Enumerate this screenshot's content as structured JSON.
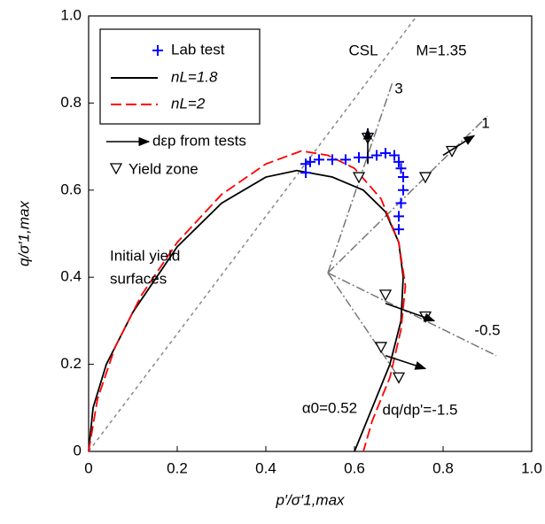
{
  "chart_data": {
    "type": "line",
    "xlabel": "p′/σ′1,max",
    "ylabel": "q/σ′1,max",
    "xlim": [
      0,
      1
    ],
    "ylim": [
      0,
      1
    ],
    "xticks": [
      0,
      0.2,
      0.4,
      0.6,
      0.8,
      {
        "value": 1,
        "label": "1.0"
      }
    ],
    "yticks": [
      0,
      0.2,
      0.4,
      0.6,
      0.8,
      {
        "value": 1,
        "label": "1.0"
      }
    ],
    "series": [
      {
        "name": "Lab test",
        "color": "#0000ff",
        "marker": "plus",
        "x": [
          0.49,
          0.49,
          0.5,
          0.52,
          0.55,
          0.58,
          0.61,
          0.63,
          0.65,
          0.67,
          0.69,
          0.7,
          0.705,
          0.71,
          0.71,
          0.705,
          0.7,
          0.7,
          0.63
        ],
        "values": [
          0.64,
          0.66,
          0.665,
          0.67,
          0.67,
          0.67,
          0.675,
          0.675,
          0.68,
          0.685,
          0.68,
          0.665,
          0.65,
          0.63,
          0.6,
          0.57,
          0.54,
          0.51,
          0.73
        ]
      },
      {
        "name": "nL=1.8",
        "color": "#000000",
        "x": [
          0,
          0.01,
          0.04,
          0.1,
          0.2,
          0.3,
          0.4,
          0.47,
          0.55,
          0.62,
          0.67,
          0.7,
          0.71,
          0.705,
          0.68,
          0.64,
          0.6
        ],
        "values": [
          0,
          0.1,
          0.2,
          0.32,
          0.47,
          0.57,
          0.63,
          0.645,
          0.63,
          0.6,
          0.55,
          0.48,
          0.4,
          0.3,
          0.2,
          0.1,
          0
        ]
      },
      {
        "name": "nL=2",
        "color": "#ff0000",
        "dashed": true,
        "x": [
          0,
          0.02,
          0.06,
          0.12,
          0.2,
          0.3,
          0.4,
          0.48,
          0.54,
          0.6,
          0.66,
          0.7,
          0.715,
          0.705,
          0.68,
          0.64,
          0.62
        ],
        "values": [
          0,
          0.12,
          0.24,
          0.36,
          0.48,
          0.59,
          0.66,
          0.69,
          0.68,
          0.65,
          0.58,
          0.48,
          0.38,
          0.28,
          0.17,
          0.07,
          0
        ]
      }
    ],
    "strain_increments": {
      "name": "dεp from tests",
      "color": "#000000",
      "x": [
        [
          0.63,
          0.63
        ],
        [
          0.8,
          0.87
        ],
        [
          0.67,
          0.78
        ],
        [
          0.67,
          0.76
        ]
      ],
      "values": [
        [
          0.66,
          0.74
        ],
        [
          0.68,
          0.725
        ],
        [
          0.34,
          0.3
        ],
        [
          0.22,
          0.19
        ]
      ]
    },
    "yield_zone": {
      "name": "Yield zone",
      "color": "#000000",
      "x": [
        0.63,
        0.76,
        0.82,
        0.61,
        0.67,
        0.76,
        0.66,
        0.7
      ],
      "values": [
        0.72,
        0.63,
        0.69,
        0.63,
        0.36,
        0.31,
        0.24,
        0.17
      ]
    },
    "csl": {
      "label": "CSL",
      "slope_label": "M=1.35",
      "slope": 1.35
    },
    "stress_paths": {
      "origin": [
        0.54,
        0.41
      ],
      "slopes": [
        3,
        1,
        -0.5,
        -1.5
      ],
      "labels": [
        "3",
        "1",
        "-0.5",
        "dq/dp'=-1.5"
      ]
    },
    "annotations": [
      "Initial yield",
      "surfaces",
      "α0=0.52"
    ]
  }
}
